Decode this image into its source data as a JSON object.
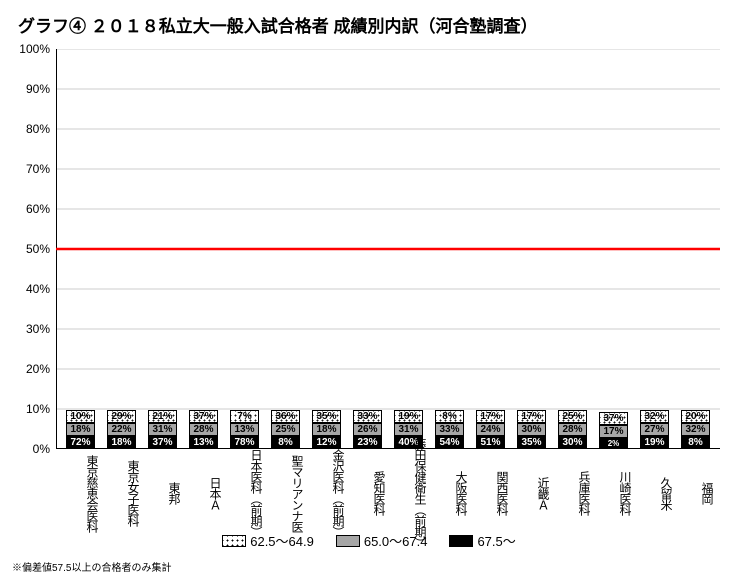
{
  "title": "グラフ④ ２０１８私立大一般入試合格者 成績別内訳（河合塾調査）",
  "title_fontsize": 17,
  "chart": {
    "type": "stacked-bar",
    "ylim": [
      0,
      100
    ],
    "ytick_step": 10,
    "ytick_suffix": "%",
    "reference_line": {
      "value": 50,
      "color": "#ff0000",
      "width": 2.5
    },
    "grid_color": "#cccccc",
    "background_color": "#ffffff",
    "bar_border_color": "#000000",
    "series": [
      {
        "key": "high",
        "label": "67.5～",
        "fill": "#000000",
        "label_color": "#ffffff"
      },
      {
        "key": "mid",
        "label": "65.0～67.4",
        "fill": "#a6a6a6",
        "label_color": "#000000"
      },
      {
        "key": "low",
        "label": "62.5～64.9",
        "fill": "dotted-white",
        "label_color": "#000000"
      }
    ],
    "categories": [
      {
        "name": "東京慈恵会医科",
        "high": 72,
        "mid": 18,
        "low": 10
      },
      {
        "name": "東京女子医科",
        "high": 18,
        "mid": 22,
        "low": 29
      },
      {
        "name": "東邦",
        "high": 37,
        "mid": 31,
        "low": 21
      },
      {
        "name": "日本Ａ",
        "high": 13,
        "mid": 28,
        "low": 37
      },
      {
        "name": "日本医科（前期）",
        "high": 78,
        "mid": 13,
        "low": 7
      },
      {
        "name": "聖マリアンナ医",
        "high": 8,
        "mid": 25,
        "low": 36
      },
      {
        "name": "金沢医科（前期）",
        "high": 12,
        "mid": 18,
        "low": 35
      },
      {
        "name": "愛知医科",
        "high": 23,
        "mid": 26,
        "low": 33
      },
      {
        "name": "藤田保健衛生（前期）",
        "high": 40,
        "mid": 31,
        "low": 19
      },
      {
        "name": "大阪医科",
        "high": 54,
        "mid": 33,
        "low": 8
      },
      {
        "name": "関西医科",
        "high": 51,
        "mid": 24,
        "low": 17
      },
      {
        "name": "近畿Ａ",
        "high": 35,
        "mid": 30,
        "low": 17
      },
      {
        "name": "兵庫医科",
        "high": 30,
        "mid": 28,
        "low": 25
      },
      {
        "name": "川崎医科",
        "high": 2,
        "mid": 17,
        "low": 37
      },
      {
        "name": "久留米",
        "high": 19,
        "mid": 27,
        "low": 32
      },
      {
        "name": "福岡",
        "high": 8,
        "mid": 32,
        "low": 20
      }
    ]
  },
  "legend_order": [
    "low",
    "mid",
    "high"
  ],
  "footnote": "※偏差値57.5以上の合格者のみ集計"
}
